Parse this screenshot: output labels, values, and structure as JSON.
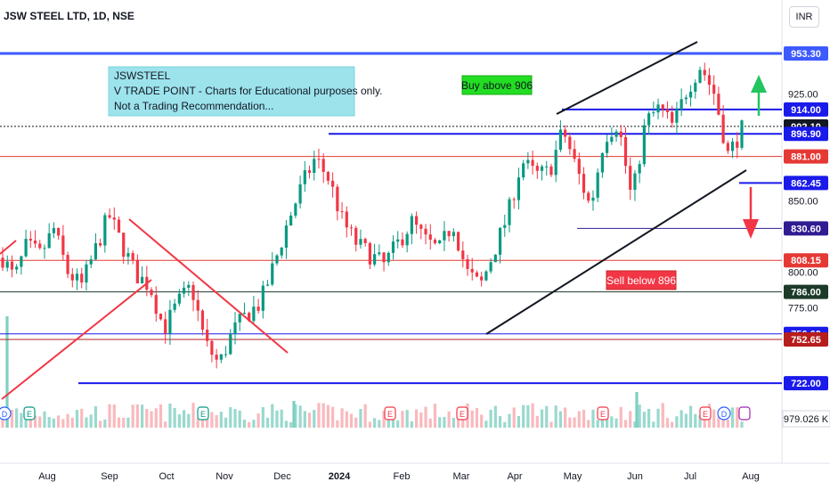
{
  "header": {
    "title": "JSW STEEL LTD, 1D, NSE",
    "currency": "INR"
  },
  "chart_data": {
    "type": "candlestick",
    "ylim": [
      715,
      965
    ],
    "y_ticks": [
      925.0,
      850.0,
      800.0,
      775.0
    ],
    "x_ticks": [
      "Aug",
      "Sep",
      "Oct",
      "Nov",
      "Dec",
      "2024",
      "Feb",
      "Mar",
      "Apr",
      "May",
      "Jun",
      "Jul",
      "Aug"
    ],
    "note_lines": [
      "JSWSTEEL",
      "V TRADE POINT - Charts for Educational purposes only.",
      "Not a Trading Recommendation..."
    ],
    "annotations": {
      "buy": "Buy above 906",
      "sell": "Sell below 896"
    },
    "price_levels": [
      {
        "value": "953.30",
        "color": "#3d5afe"
      },
      {
        "value": "914.00",
        "color": "#1a1aeb"
      },
      {
        "value": "902.10",
        "color": "#131722"
      },
      {
        "value": "896.90",
        "color": "#1a1aeb"
      },
      {
        "value": "881.00",
        "color": "#e53935"
      },
      {
        "value": "862.45",
        "color": "#1a1aeb"
      },
      {
        "value": "830.60",
        "color": "#311b92"
      },
      {
        "value": "808.15",
        "color": "#e53935"
      },
      {
        "value": "786.00",
        "color": "#1b3a28"
      },
      {
        "value": "756.60",
        "color": "#1a1aeb"
      },
      {
        "value": "752.65",
        "color": "#b71c1c"
      },
      {
        "value": "722.00",
        "color": "#1a1aeb"
      }
    ],
    "volume_value": "979.026 K",
    "event_markers": [
      "D",
      "E",
      "E",
      "E",
      "E",
      "E",
      "E",
      "D",
      "E"
    ],
    "price_path": [
      [
        "2023-07-19",
        810
      ],
      [
        "2023-07-25",
        795
      ],
      [
        "2023-07-31",
        818
      ],
      [
        "2023-08-07",
        812
      ],
      [
        "2023-08-14",
        830
      ],
      [
        "2023-08-21",
        800
      ],
      [
        "2023-08-28",
        790
      ],
      [
        "2023-09-04",
        815
      ],
      [
        "2023-09-11",
        840
      ],
      [
        "2023-09-18",
        818
      ],
      [
        "2023-09-25",
        798
      ],
      [
        "2023-10-02",
        790
      ],
      [
        "2023-10-09",
        760
      ],
      [
        "2023-10-16",
        778
      ],
      [
        "2023-10-23",
        790
      ],
      [
        "2023-10-30",
        750
      ],
      [
        "2023-11-06",
        735
      ],
      [
        "2023-11-13",
        758
      ],
      [
        "2023-11-20",
        770
      ],
      [
        "2023-11-27",
        778
      ],
      [
        "2023-12-04",
        805
      ],
      [
        "2023-12-11",
        835
      ],
      [
        "2023-12-18",
        860
      ],
      [
        "2023-12-25",
        880
      ],
      [
        "2024-01-01",
        865
      ],
      [
        "2024-01-08",
        835
      ],
      [
        "2024-01-15",
        820
      ],
      [
        "2024-01-22",
        812
      ],
      [
        "2024-01-29",
        805
      ],
      [
        "2024-02-05",
        820
      ],
      [
        "2024-02-12",
        835
      ],
      [
        "2024-02-19",
        822
      ],
      [
        "2024-02-26",
        815
      ],
      [
        "2024-03-04",
        835
      ],
      [
        "2024-03-11",
        800
      ],
      [
        "2024-03-18",
        790
      ],
      [
        "2024-03-25",
        815
      ],
      [
        "2024-04-01",
        840
      ],
      [
        "2024-04-08",
        878
      ],
      [
        "2024-04-15",
        868
      ],
      [
        "2024-04-22",
        870
      ],
      [
        "2024-04-29",
        900
      ],
      [
        "2024-05-06",
        872
      ],
      [
        "2024-05-13",
        845
      ],
      [
        "2024-05-20",
        895
      ],
      [
        "2024-05-27",
        905
      ],
      [
        "2024-06-03",
        850
      ],
      [
        "2024-06-10",
        905
      ],
      [
        "2024-06-17",
        915
      ],
      [
        "2024-06-24",
        902
      ],
      [
        "2024-07-01",
        928
      ],
      [
        "2024-07-08",
        945
      ],
      [
        "2024-07-15",
        925
      ],
      [
        "2024-07-22",
        882
      ],
      [
        "2024-07-29",
        900
      ]
    ]
  }
}
